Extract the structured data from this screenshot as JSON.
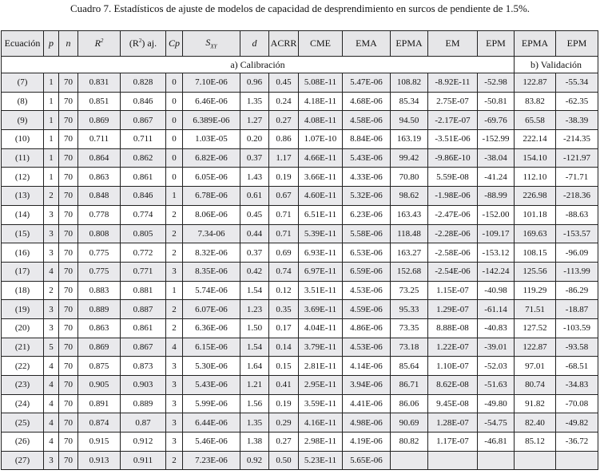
{
  "title": "Cuadro 7. Estadísticos de ajuste de modelos de capacidad de desprendimiento en surcos de pendiente de 1.5%.",
  "headers": {
    "ecuacion": "Ecuación",
    "p": "p",
    "n": "n",
    "r2": "R",
    "r2_sup": "2",
    "r2aj_open": "(R",
    "r2aj_sup": "2",
    "r2aj_close": ") aj.",
    "cp": "Cp",
    "sxy": "S",
    "sxy_sub": "XY",
    "d": "d",
    "acrr": "ACRR",
    "cme": "CME",
    "ema": "EMA",
    "epma": "EPMA",
    "em": "EM",
    "epm": "EPM",
    "epma_v": "EPMA",
    "epm_v": "EPM"
  },
  "sections": {
    "calibracion": "a) Calibración",
    "validacion": "b) Validación"
  },
  "rows": [
    [
      "(7)",
      "1",
      "70",
      "0.831",
      "0.828",
      "0",
      "7.10E-06",
      "0.96",
      "0.45",
      "5.08E-11",
      "5.47E-06",
      "108.82",
      "-8.92E-11",
      "-52.98",
      "122.87",
      "-55.34"
    ],
    [
      "(8)",
      "1",
      "70",
      "0.851",
      "0.846",
      "0",
      "6.46E-06",
      "1.35",
      "0.24",
      "4.18E-11",
      "4.68E-06",
      "85.34",
      "2.75E-07",
      "-50.81",
      "83.82",
      "-62.35"
    ],
    [
      "(9)",
      "1",
      "70",
      "0.869",
      "0.867",
      "0",
      "6.389E-06",
      "1.27",
      "0.27",
      "4.08E-11",
      "4.58E-06",
      "94.50",
      "-2.17E-07",
      "-69.76",
      "65.58",
      "-38.39"
    ],
    [
      "(10)",
      "1",
      "70",
      "0.711",
      "0.711",
      "0",
      "1.03E-05",
      "0.20",
      "0.86",
      "1.07E-10",
      "8.84E-06",
      "163.19",
      "-3.51E-06",
      "-152.99",
      "222.14",
      "-214.35"
    ],
    [
      "(11)",
      "1",
      "70",
      "0.864",
      "0.862",
      "0",
      "6.82E-06",
      "0.37",
      "1.17",
      "4.66E-11",
      "5.43E-06",
      "99.42",
      "-9.86E-10",
      "-38.04",
      "154.10",
      "-121.97"
    ],
    [
      "(12)",
      "1",
      "70",
      "0.863",
      "0.861",
      "0",
      "6.05E-06",
      "1.43",
      "0.19",
      "3.66E-11",
      "4.33E-06",
      "70.80",
      "5.59E-08",
      "-41.24",
      "112.10",
      "-71.71"
    ],
    [
      "(13)",
      "2",
      "70",
      "0.848",
      "0.846",
      "1",
      "6.78E-06",
      "0.61",
      "0.67",
      "4.60E-11",
      "5.32E-06",
      "98.62",
      "-1.98E-06",
      "-88.99",
      "226.98",
      "-218.36"
    ],
    [
      "(14)",
      "3",
      "70",
      "0.778",
      "0.774",
      "2",
      "8.06E-06",
      "0.45",
      "0.71",
      "6.51E-11",
      "6.23E-06",
      "163.43",
      "-2.47E-06",
      "-152.00",
      "101.18",
      "-88.63"
    ],
    [
      "(15)",
      "3",
      "70",
      "0.808",
      "0.805",
      "2",
      "7.34-06",
      "0.44",
      "0.71",
      "5.39E-11",
      "5.58E-06",
      "118.48",
      "-2.28E-06",
      "-109.17",
      "169.63",
      "-153.57"
    ],
    [
      "(16)",
      "3",
      "70",
      "0.775",
      "0.772",
      "2",
      "8.32E-06",
      "0.37",
      "0.69",
      "6.93E-11",
      "6.53E-06",
      "163.27",
      "-2.58E-06",
      "-153.12",
      "108.15",
      "-96.09"
    ],
    [
      "(17)",
      "4",
      "70",
      "0.775",
      "0.771",
      "3",
      "8.35E-06",
      "0.42",
      "0.74",
      "6.97E-11",
      "6.59E-06",
      "152.68",
      "-2.54E-06",
      "-142.24",
      "125.56",
      "-113.99"
    ],
    [
      "(18)",
      "2",
      "70",
      "0.883",
      "0.881",
      "1",
      "5.74E-06",
      "1.54",
      "0.12",
      "3.51E-11",
      "4.53E-06",
      "73.25",
      "1.15E-07",
      "-40.98",
      "119.29",
      "-86.29"
    ],
    [
      "(19)",
      "3",
      "70",
      "0.889",
      "0.887",
      "2",
      "6.07E-06",
      "1.23",
      "0.35",
      "3.69E-11",
      "4.59E-06",
      "95.33",
      "1.29E-07",
      "-61.14",
      "71.51",
      "-18.87"
    ],
    [
      "(20)",
      "3",
      "70",
      "0.863",
      "0.861",
      "2",
      "6.36E-06",
      "1.50",
      "0.17",
      "4.04E-11",
      "4.86E-06",
      "73.35",
      "8.88E-08",
      "-40.83",
      "127.52",
      "-103.59"
    ],
    [
      "(21)",
      "5",
      "70",
      "0.869",
      "0.867",
      "4",
      "6.15E-06",
      "1.54",
      "0.14",
      "3.79E-11",
      "4.53E-06",
      "73.18",
      "1.22E-07",
      "-39.01",
      "122.87",
      "-93.58"
    ],
    [
      "(22)",
      "4",
      "70",
      "0.875",
      "0.873",
      "3",
      "5.30E-06",
      "1.64",
      "0.15",
      "2.81E-11",
      "4.14E-06",
      "85.64",
      "1.10E-07",
      "-52.03",
      "97.01",
      "-68.51"
    ],
    [
      "(23)",
      "4",
      "70",
      "0.905",
      "0.903",
      "3",
      "5.43E-06",
      "1.21",
      "0.41",
      "2.95E-11",
      "3.94E-06",
      "86.71",
      "8.62E-08",
      "-51.63",
      "80.74",
      "-34.83"
    ],
    [
      "(24)",
      "4",
      "70",
      "0.891",
      "0.889",
      "3",
      "5.99E-06",
      "1.56",
      "0.19",
      "3.59E-11",
      "4.41E-06",
      "86.06",
      "9.45E-08",
      "-49.80",
      "91.82",
      "-70.08"
    ],
    [
      "(25)",
      "4",
      "70",
      "0.874",
      "0.87",
      "3",
      "6.44E-06",
      "1.35",
      "0.29",
      "4.16E-11",
      "4.98E-06",
      "90.69",
      "1.28E-07",
      "-54.75",
      "82.40",
      "-49.82"
    ],
    [
      "(26)",
      "4",
      "70",
      "0.915",
      "0.912",
      "3",
      "5.46E-06",
      "1.38",
      "0.27",
      "2.98E-11",
      "4.19E-06",
      "80.82",
      "1.17E-07",
      "-46.81",
      "85.12",
      "-36.72"
    ],
    [
      "(27)",
      "3",
      "70",
      "0.913",
      "0.911",
      "2",
      "7.23E-06",
      "0.92",
      "0.50",
      "5.23E-11",
      "5.65E-06",
      "",
      "",
      "",
      "",
      ""
    ]
  ],
  "colors": {
    "shaded_row": "#e9e9ec",
    "header_bg": "#e6e6e8",
    "border": "#222222"
  }
}
